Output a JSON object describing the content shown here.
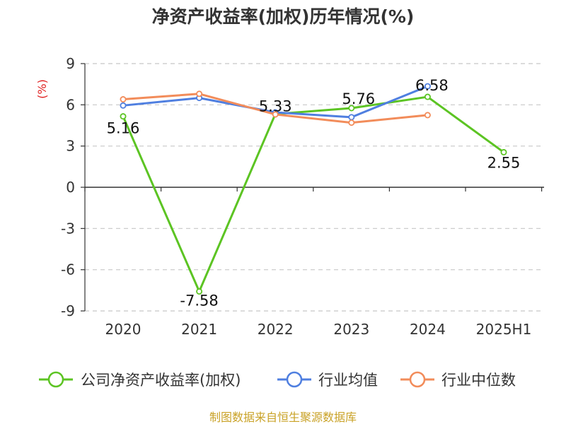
{
  "chart_data": {
    "type": "line",
    "title": "净资产收益率(加权)历年情况(%)",
    "ylabel": "(%)",
    "xlabel": "",
    "categories": [
      "2020",
      "2021",
      "2022",
      "2023",
      "2024",
      "2025H1"
    ],
    "ylim": [
      -9,
      9
    ],
    "yticks": [
      "9",
      "6",
      "3",
      "0",
      "-3",
      "-6",
      "-9"
    ],
    "ytick_values": [
      9,
      6,
      3,
      0,
      -3,
      -6,
      -9
    ],
    "grid": true,
    "legend_position": "bottom",
    "series": [
      {
        "name": "公司净资产收益率(加权)",
        "color": "#5cc423",
        "values": [
          5.16,
          -7.58,
          5.33,
          5.76,
          6.58,
          2.55
        ],
        "labels": [
          "5.16",
          "-7.58",
          "5.33",
          "5.76",
          "6.58",
          "2.55"
        ]
      },
      {
        "name": "行业均值",
        "color": "#4f7fe0",
        "values": [
          5.95,
          6.5,
          5.45,
          5.1,
          7.35,
          null
        ]
      },
      {
        "name": "行业中位数",
        "color": "#f28c5a",
        "values": [
          6.4,
          6.8,
          5.3,
          4.7,
          5.25,
          null
        ]
      }
    ],
    "source": "制图数据来自恒生聚源数据库"
  }
}
